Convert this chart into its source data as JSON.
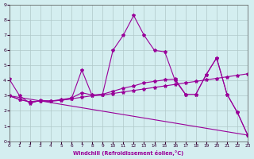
{
  "xlabel": "Windchill (Refroidissement éolien,°C)",
  "background_color": "#d4eef0",
  "line_color": "#990099",
  "grid_color": "#b0c8c8",
  "xlim": [
    0,
    23
  ],
  "ylim": [
    0,
    9
  ],
  "xticks": [
    0,
    1,
    2,
    3,
    4,
    5,
    6,
    7,
    8,
    9,
    10,
    11,
    12,
    13,
    14,
    15,
    16,
    17,
    18,
    19,
    20,
    21,
    22,
    23
  ],
  "yticks": [
    0,
    1,
    2,
    3,
    4,
    5,
    6,
    7,
    8,
    9
  ],
  "line1_x": [
    0,
    1,
    2,
    3,
    4,
    5,
    6,
    7,
    8,
    9,
    10,
    11,
    12,
    13,
    14,
    15,
    16,
    17,
    18,
    19,
    20,
    21,
    22,
    23
  ],
  "line1_y": [
    4.1,
    3.0,
    2.5,
    2.7,
    2.65,
    2.75,
    2.85,
    3.2,
    3.05,
    3.1,
    3.3,
    3.5,
    3.65,
    3.85,
    3.95,
    4.05,
    4.1,
    3.1,
    3.1,
    4.4,
    5.5,
    3.1,
    1.9,
    0.4
  ],
  "line2_x": [
    0,
    1,
    2,
    3,
    4,
    5,
    6,
    7,
    8,
    9,
    10,
    11,
    12,
    13,
    14,
    15,
    16,
    17,
    18,
    19,
    20,
    21,
    22,
    23
  ],
  "line2_y": [
    3.0,
    2.75,
    2.6,
    2.65,
    2.65,
    2.7,
    2.8,
    2.9,
    3.0,
    3.05,
    3.15,
    3.25,
    3.35,
    3.45,
    3.55,
    3.65,
    3.75,
    3.85,
    3.95,
    4.05,
    4.15,
    4.25,
    4.35,
    4.45
  ],
  "line3_x": [
    0,
    1,
    2,
    3,
    4,
    5,
    6,
    7,
    8,
    9,
    10,
    11,
    12,
    13,
    14,
    15,
    16,
    17,
    18,
    19,
    20,
    21,
    22,
    23
  ],
  "line3_y": [
    3.0,
    2.75,
    2.6,
    2.65,
    2.65,
    2.7,
    2.8,
    4.7,
    3.0,
    3.1,
    6.0,
    7.0,
    8.3,
    7.0,
    6.0,
    5.9,
    4.0,
    3.1,
    3.1,
    4.4,
    5.5,
    3.1,
    1.9,
    0.4
  ],
  "line4_x": [
    0,
    23
  ],
  "line4_y": [
    3.0,
    0.4
  ]
}
